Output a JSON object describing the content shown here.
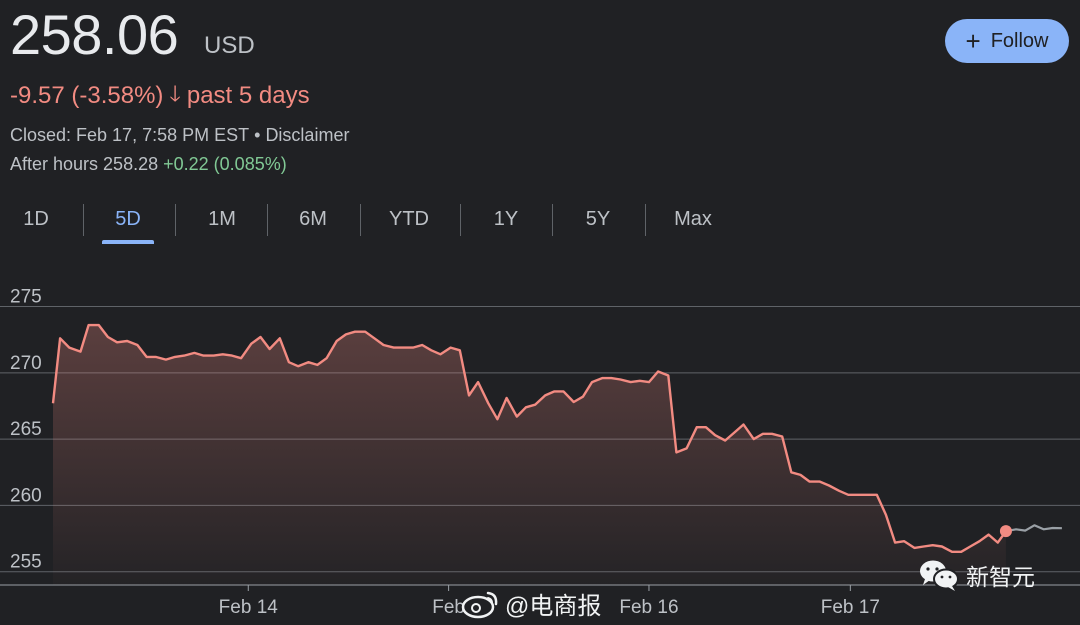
{
  "quote": {
    "price": "258.06",
    "currency": "USD",
    "change": "-9.57 (-3.58%)",
    "period": "past 5 days",
    "closed": "Closed: Feb 17, 7:58 PM EST",
    "disclaimer": "Disclaimer",
    "after_label": "After hours 258.28",
    "after_change": "+0.22 (0.085%)",
    "down_color": "#f28b82",
    "up_color": "#81c995"
  },
  "follow": {
    "label": "Follow",
    "icon": "plus-icon"
  },
  "tabs": [
    "1D",
    "5D",
    "1M",
    "6M",
    "YTD",
    "1Y",
    "5Y",
    "Max"
  ],
  "active_tab": "5D",
  "watermarks": {
    "weibo": "@电商报",
    "wechat": "新智元"
  },
  "chart_data": {
    "type": "area",
    "ylim": [
      254,
      277
    ],
    "yticks": [
      255,
      260,
      265,
      270,
      275
    ],
    "xlim": [
      0,
      100
    ],
    "xticks": [
      {
        "x": 19.2,
        "label": "Feb 14"
      },
      {
        "x": 38.9,
        "label": "Feb"
      },
      {
        "x": 58.6,
        "label": "Feb 16"
      },
      {
        "x": 78.4,
        "label": "Feb 17"
      }
    ],
    "grid": true,
    "line_color": "#f28b82",
    "after_hours_color": "#9aa0a6",
    "series": [
      {
        "values": [
          [
            0.0,
            267.7
          ],
          [
            0.7,
            272.6
          ],
          [
            1.6,
            271.9
          ],
          [
            2.7,
            271.6
          ],
          [
            3.5,
            273.6
          ],
          [
            4.5,
            273.6
          ],
          [
            5.4,
            272.7
          ],
          [
            6.3,
            272.3
          ],
          [
            7.3,
            272.4
          ],
          [
            8.3,
            272.1
          ],
          [
            9.2,
            271.2
          ],
          [
            10.1,
            271.2
          ],
          [
            11.1,
            271.0
          ],
          [
            12.0,
            271.2
          ],
          [
            12.9,
            271.3
          ],
          [
            13.9,
            271.5
          ],
          [
            14.8,
            271.3
          ],
          [
            15.8,
            271.3
          ],
          [
            16.7,
            271.4
          ],
          [
            17.6,
            271.3
          ],
          [
            18.5,
            271.1
          ],
          [
            19.5,
            272.2
          ],
          [
            20.4,
            272.7
          ],
          [
            21.3,
            271.8
          ],
          [
            22.3,
            272.6
          ],
          [
            23.2,
            270.8
          ],
          [
            24.1,
            270.5
          ],
          [
            25.1,
            270.8
          ],
          [
            26.0,
            270.6
          ],
          [
            26.9,
            271.1
          ],
          [
            27.9,
            272.4
          ],
          [
            28.8,
            272.9
          ],
          [
            29.7,
            273.1
          ],
          [
            30.7,
            273.1
          ],
          [
            31.6,
            272.6
          ],
          [
            32.5,
            272.1
          ],
          [
            33.5,
            271.9
          ],
          [
            34.4,
            271.9
          ],
          [
            35.4,
            271.9
          ],
          [
            36.3,
            272.1
          ],
          [
            37.2,
            271.7
          ],
          [
            38.1,
            271.4
          ],
          [
            39.1,
            271.9
          ],
          [
            40.0,
            271.7
          ],
          [
            40.9,
            268.3
          ],
          [
            41.8,
            269.3
          ],
          [
            42.8,
            267.7
          ],
          [
            43.7,
            266.5
          ],
          [
            44.6,
            268.1
          ],
          [
            45.6,
            266.7
          ],
          [
            46.5,
            267.4
          ],
          [
            47.4,
            267.6
          ],
          [
            48.4,
            268.3
          ],
          [
            49.3,
            268.6
          ],
          [
            50.2,
            268.6
          ],
          [
            51.2,
            267.8
          ],
          [
            52.1,
            268.2
          ],
          [
            53.0,
            269.3
          ],
          [
            54.0,
            269.6
          ],
          [
            54.9,
            269.6
          ],
          [
            55.8,
            269.5
          ],
          [
            56.8,
            269.3
          ],
          [
            57.7,
            269.4
          ],
          [
            58.6,
            269.3
          ],
          [
            59.5,
            270.1
          ],
          [
            60.5,
            269.8
          ],
          [
            61.3,
            264.0
          ],
          [
            62.3,
            264.3
          ],
          [
            63.3,
            265.9
          ],
          [
            64.2,
            265.9
          ],
          [
            65.1,
            265.3
          ],
          [
            66.1,
            264.9
          ],
          [
            67.0,
            265.5
          ],
          [
            67.9,
            266.1
          ],
          [
            68.9,
            265.0
          ],
          [
            69.8,
            265.4
          ],
          [
            70.7,
            265.4
          ],
          [
            71.7,
            265.2
          ],
          [
            72.6,
            262.5
          ],
          [
            73.5,
            262.3
          ],
          [
            74.4,
            261.8
          ],
          [
            75.4,
            261.8
          ],
          [
            76.3,
            261.5
          ],
          [
            77.3,
            261.1
          ],
          [
            78.2,
            260.8
          ],
          [
            79.1,
            260.8
          ],
          [
            80.0,
            260.8
          ],
          [
            81.0,
            260.8
          ],
          [
            81.9,
            259.3
          ],
          [
            82.8,
            257.2
          ],
          [
            83.7,
            257.3
          ],
          [
            84.7,
            256.8
          ],
          [
            85.6,
            256.9
          ],
          [
            86.5,
            257.0
          ],
          [
            87.4,
            256.9
          ],
          [
            88.4,
            256.5
          ],
          [
            89.3,
            256.5
          ],
          [
            90.2,
            256.9
          ],
          [
            91.1,
            257.3
          ],
          [
            92.0,
            257.8
          ],
          [
            92.9,
            257.2
          ],
          [
            93.7,
            258.06
          ]
        ]
      },
      {
        "name": "After hours",
        "values": [
          [
            93.7,
            258.06
          ],
          [
            94.7,
            258.2
          ],
          [
            95.6,
            258.1
          ],
          [
            96.5,
            258.5
          ],
          [
            97.4,
            258.2
          ],
          [
            98.3,
            258.3
          ],
          [
            99.2,
            258.28
          ]
        ]
      }
    ]
  }
}
